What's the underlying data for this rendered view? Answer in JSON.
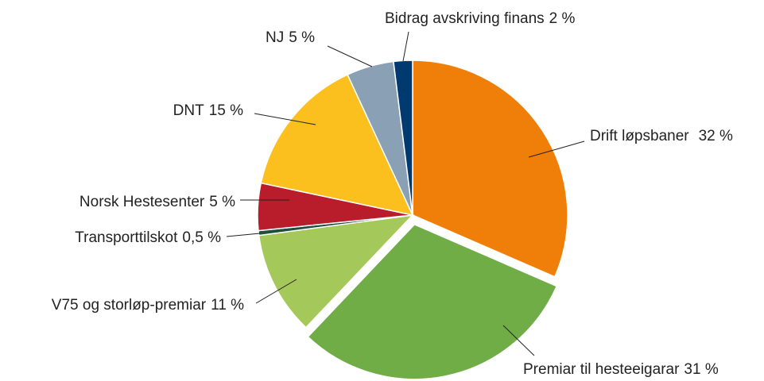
{
  "chart_data": {
    "type": "pie",
    "categories": [
      "Drift løpsbaner",
      "Premiar til hesteeigarar",
      "V75 og storløp-premiar",
      "Transporttilskot",
      "Norsk Hestesenter",
      "DNT",
      "NJ",
      "Bidrag avskriving finans"
    ],
    "values": [
      32,
      31,
      11,
      0.5,
      5,
      15,
      5,
      2
    ],
    "value_labels": [
      "32 %",
      "31 %",
      "11 %",
      "0,5 %",
      "5 %",
      "15 %",
      "5 %",
      "2 %"
    ],
    "colors": [
      "#f07f09",
      "#70ad47",
      "#a5c85a",
      "#1f4e3d",
      "#b91c2a",
      "#fbc01e",
      "#8aa0b4",
      "#003a70"
    ]
  }
}
